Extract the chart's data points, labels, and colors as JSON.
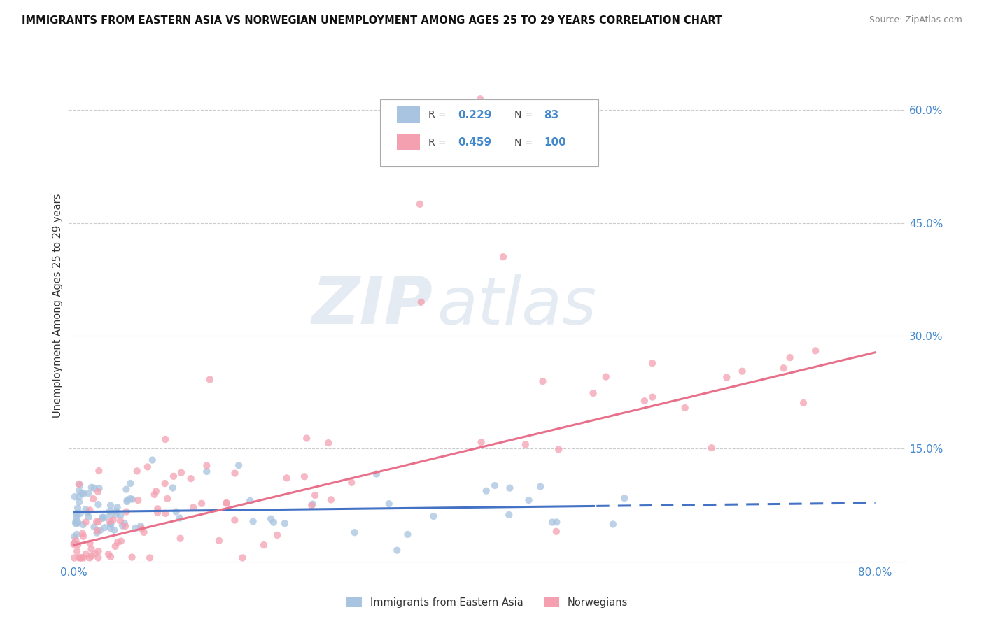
{
  "title": "IMMIGRANTS FROM EASTERN ASIA VS NORWEGIAN UNEMPLOYMENT AMONG AGES 25 TO 29 YEARS CORRELATION CHART",
  "source": "Source: ZipAtlas.com",
  "ylabel": "Unemployment Among Ages 25 to 29 years",
  "ylim": [
    0.0,
    0.68
  ],
  "xlim": [
    -0.005,
    0.83
  ],
  "ytick_positions": [
    0.15,
    0.3,
    0.45,
    0.6
  ],
  "ytick_labels": [
    "15.0%",
    "30.0%",
    "45.0%",
    "60.0%"
  ],
  "blue_R": 0.229,
  "blue_N": 83,
  "pink_R": 0.459,
  "pink_N": 100,
  "blue_color": "#a8c4e0",
  "pink_color": "#f4a0b0",
  "blue_line_color": "#4472C4",
  "pink_line_color": "#e8708a",
  "legend_label1": "Immigrants from Eastern Asia",
  "legend_label2": "Norwegians",
  "watermark_zip": "ZIP",
  "watermark_atlas": "atlas",
  "blue_line_solid_end": 0.52,
  "blue_line_y_start": 0.066,
  "blue_line_y_end": 0.078,
  "pink_line_y_start": 0.022,
  "pink_line_y_end": 0.278
}
